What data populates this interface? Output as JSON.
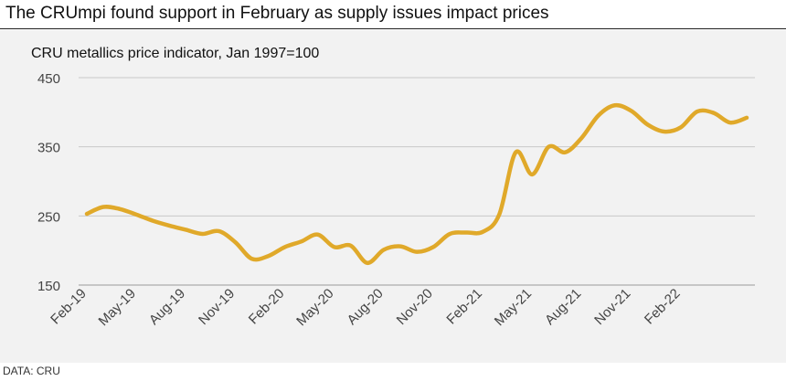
{
  "headline": "The CRUmpi found support in February as supply issues impact prices",
  "source": "DATA: CRU",
  "colors": {
    "line": "#e0a92a",
    "grid": "#c8c8c8",
    "panel": "#f2f2f2",
    "text": "#444444"
  },
  "chart_data": {
    "type": "line",
    "title": "CRU metallics price indicator, Jan 1997=100",
    "xlabel": "",
    "ylabel": "",
    "ylim": [
      150,
      450
    ],
    "yticks": [
      150,
      250,
      350,
      450
    ],
    "grid": true,
    "legend": "none",
    "x_tick_labels": [
      "Feb-19",
      "May-19",
      "Aug-19",
      "Nov-19",
      "Feb-20",
      "May-20",
      "Aug-20",
      "Nov-20",
      "Feb-21",
      "May-21",
      "Aug-21",
      "Nov-21",
      "Feb-22"
    ],
    "series": [
      {
        "name": "CRU metallics price indicator",
        "values": [
          253,
          263,
          260,
          252,
          243,
          236,
          230,
          224,
          228,
          212,
          188,
          192,
          205,
          213,
          223,
          205,
          207,
          182,
          201,
          206,
          198,
          205,
          224,
          226,
          227,
          252,
          342,
          310,
          350,
          342,
          363,
          395,
          410,
          402,
          382,
          372,
          378,
          401,
          399,
          385,
          392
        ]
      }
    ]
  }
}
